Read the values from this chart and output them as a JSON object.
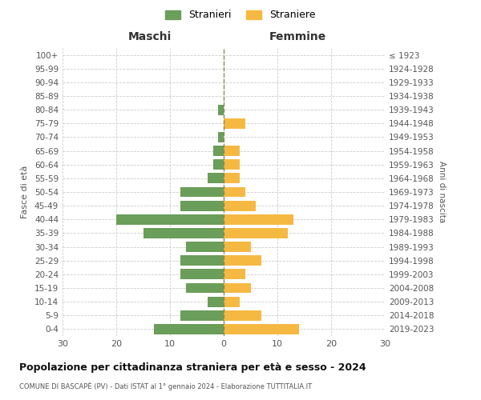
{
  "age_groups": [
    "100+",
    "95-99",
    "90-94",
    "85-89",
    "80-84",
    "75-79",
    "70-74",
    "65-69",
    "60-64",
    "55-59",
    "50-54",
    "45-49",
    "40-44",
    "35-39",
    "30-34",
    "25-29",
    "20-24",
    "15-19",
    "10-14",
    "5-9",
    "0-4"
  ],
  "birth_years": [
    "≤ 1923",
    "1924-1928",
    "1929-1933",
    "1934-1938",
    "1939-1943",
    "1944-1948",
    "1949-1953",
    "1954-1958",
    "1959-1963",
    "1964-1968",
    "1969-1973",
    "1974-1978",
    "1979-1983",
    "1984-1988",
    "1989-1993",
    "1994-1998",
    "1999-2003",
    "2004-2008",
    "2009-2013",
    "2014-2018",
    "2019-2023"
  ],
  "males": [
    0,
    0,
    0,
    0,
    1,
    0,
    1,
    2,
    2,
    3,
    8,
    8,
    20,
    15,
    7,
    8,
    8,
    7,
    3,
    8,
    13
  ],
  "females": [
    0,
    0,
    0,
    0,
    0,
    4,
    0,
    3,
    3,
    3,
    4,
    6,
    13,
    12,
    5,
    7,
    4,
    5,
    3,
    7,
    14
  ],
  "male_color": "#6a9e5a",
  "female_color": "#f5b942",
  "title": "Popolazione per cittadinanza straniera per età e sesso - 2024",
  "subtitle": "COMUNE DI BASCAPÈ (PV) - Dati ISTAT al 1° gennaio 2024 - Elaborazione TUTTITALIA.IT",
  "xlabel_left": "Maschi",
  "xlabel_right": "Femmine",
  "ylabel_left": "Fasce di età",
  "ylabel_right": "Anni di nascita",
  "legend_males": "Stranieri",
  "legend_females": "Straniere",
  "xlim": 30,
  "background_color": "#ffffff",
  "grid_color": "#cccccc"
}
